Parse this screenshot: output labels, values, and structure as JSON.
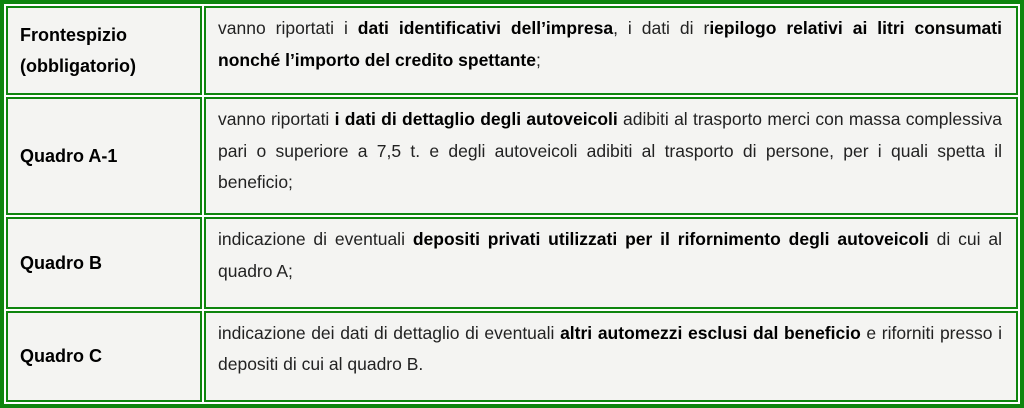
{
  "colors": {
    "border_green": "#0e850e",
    "cell_background": "#f4f4f2",
    "label_text": "#000000",
    "body_text": "#222222"
  },
  "table": {
    "description": "Table describing mandatory and detail sections of the fuel tax credit declaration form",
    "rows": [
      {
        "label": "Frontespizio (obbligatorio)",
        "segments": [
          {
            "t": "vanno riportati i ",
            "b": false
          },
          {
            "t": "dati identificativi dell’impresa",
            "b": true
          },
          {
            "t": ", i dati di r",
            "b": false
          },
          {
            "t": "iepilogo relativi ai litri consumati nonché l’importo del credito spettante",
            "b": true
          },
          {
            "t": ";",
            "b": false
          }
        ]
      },
      {
        "label": "Quadro A-1",
        "segments": [
          {
            "t": "vanno riportati ",
            "b": false
          },
          {
            "t": "i dati di dettaglio degli autoveicoli",
            "b": true
          },
          {
            "t": " adibiti al trasporto merci con massa complessiva pari o superiore a 7,5 t. e degli autoveicoli adibiti al trasporto di persone, per i quali spetta il beneficio;",
            "b": false
          }
        ]
      },
      {
        "label": "Quadro B",
        "segments": [
          {
            "t": "indicazione di eventuali ",
            "b": false
          },
          {
            "t": "depositi privati utilizzati per il rifornimento degli autoveicoli",
            "b": true
          },
          {
            "t": " di cui al quadro A;",
            "b": false
          }
        ]
      },
      {
        "label": "Quadro C",
        "segments": [
          {
            "t": "indicazione dei dati di dettaglio di eventuali ",
            "b": false
          },
          {
            "t": "altri automezzi esclusi dal beneficio",
            "b": true
          },
          {
            "t": " e riforniti presso i depositi di cui al quadro B.",
            "b": false
          }
        ]
      }
    ]
  }
}
